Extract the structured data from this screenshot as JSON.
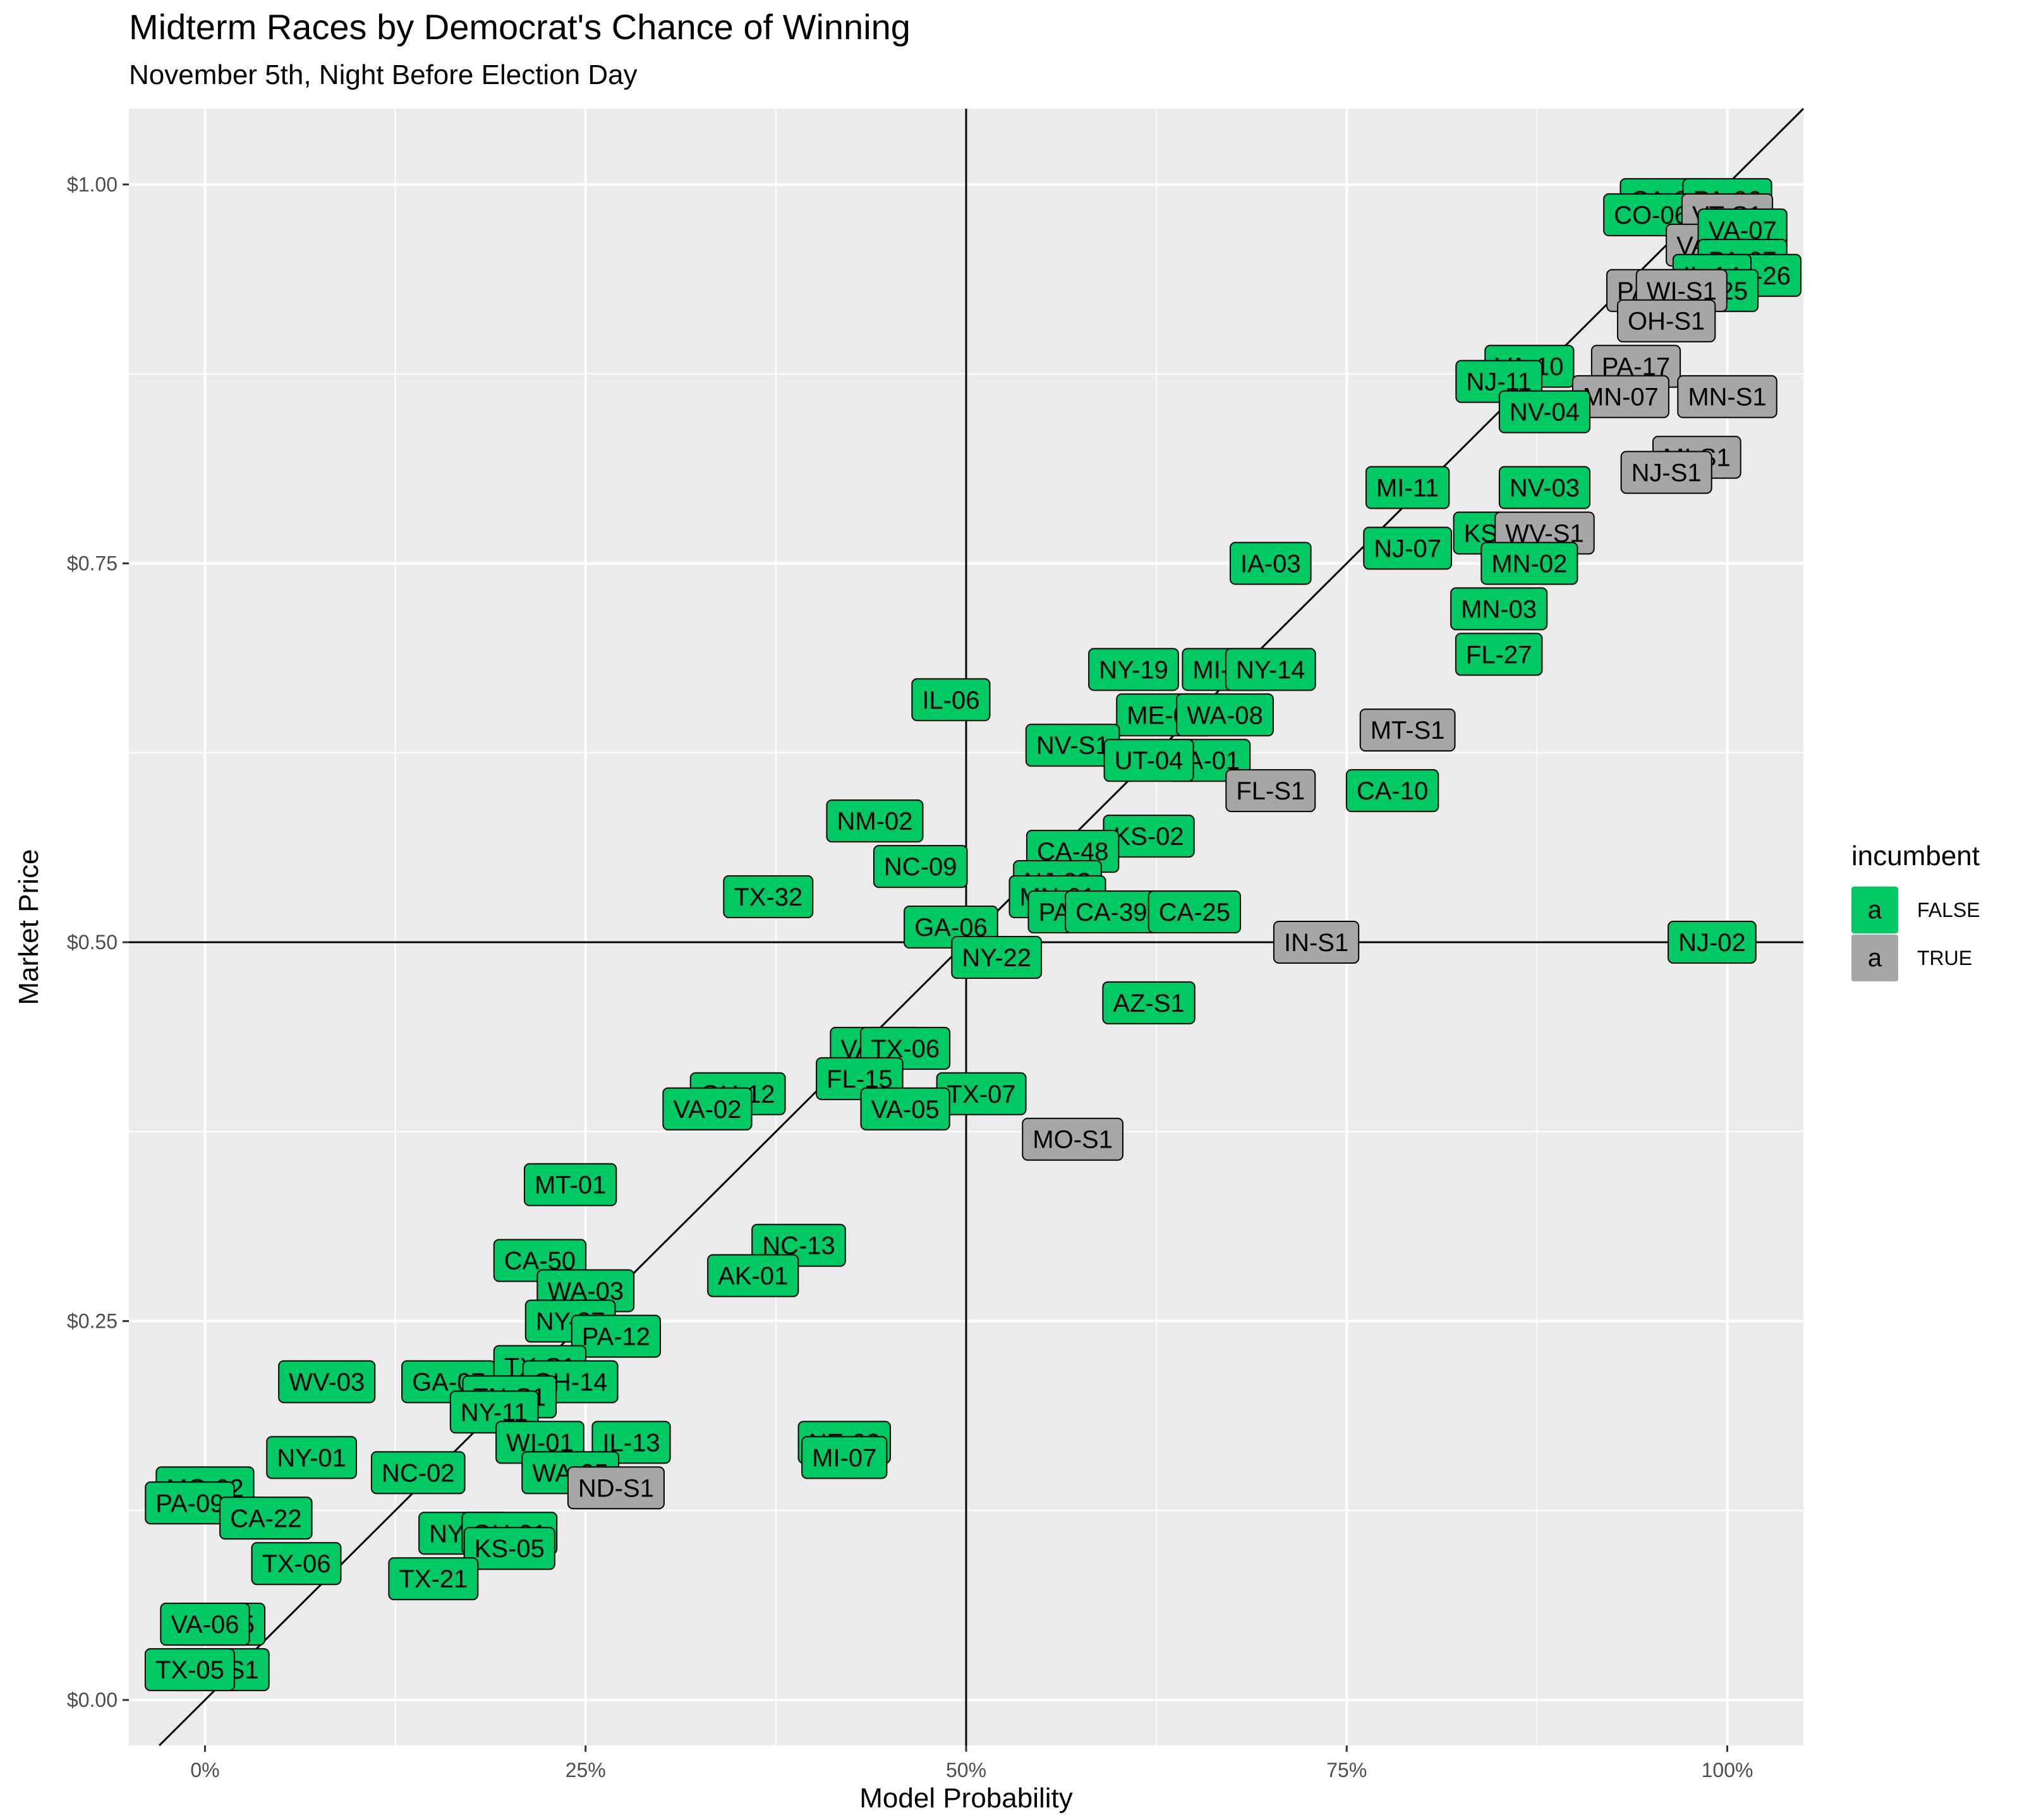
{
  "chart_data": {
    "type": "scatter",
    "title": "Midterm Races by Democrat's Chance of Winning",
    "subtitle": "November 5th, Night Before Election Day",
    "xlabel": "Model Probability",
    "ylabel": "Market Price",
    "xlim": [
      -0.05,
      1.05
    ],
    "ylim": [
      -0.03,
      1.05
    ],
    "x_ticks": [
      {
        "value": 0,
        "label": "0%"
      },
      {
        "value": 0.25,
        "label": "25%"
      },
      {
        "value": 0.5,
        "label": "50%"
      },
      {
        "value": 0.75,
        "label": "75%"
      },
      {
        "value": 1,
        "label": "100%"
      }
    ],
    "y_ticks": [
      {
        "value": 0,
        "label": "$0.00"
      },
      {
        "value": 0.25,
        "label": "$0.25"
      },
      {
        "value": 0.5,
        "label": "$0.50"
      },
      {
        "value": 0.75,
        "label": "$0.75"
      },
      {
        "value": 1,
        "label": "$1.00"
      }
    ],
    "reference_lines": {
      "diagonal": "y = x",
      "vertical_x": 0.5,
      "horizontal_y": 0.5
    },
    "grid": true,
    "legend": {
      "title": "incumbent",
      "position": "right",
      "items": [
        {
          "label": "FALSE",
          "key_text": "a",
          "color": "#00C862"
        },
        {
          "label": "TRUE",
          "key_text": "a",
          "color": "#A6A6A6"
        }
      ]
    },
    "colors": {
      "FALSE": "#00C862",
      "TRUE": "#A6A6A6",
      "panel": "#EBEBEB",
      "grid": "#FFFFFF"
    },
    "points": [
      {
        "label": "CA-39",
        "x": 0.96,
        "y": 0.99,
        "incumbent": false
      },
      {
        "label": "PA-06",
        "x": 1.0,
        "y": 0.99,
        "incumbent": false
      },
      {
        "label": "CO-06",
        "x": 0.95,
        "y": 0.98,
        "incumbent": false
      },
      {
        "label": "VT-S1",
        "x": 1.0,
        "y": 0.98,
        "incumbent": true
      },
      {
        "label": "VA-S1",
        "x": 0.99,
        "y": 0.96,
        "incumbent": true
      },
      {
        "label": "VA-07",
        "x": 1.01,
        "y": 0.97,
        "incumbent": false
      },
      {
        "label": "PA-07",
        "x": 1.01,
        "y": 0.95,
        "incumbent": false
      },
      {
        "label": "FL-26",
        "x": 1.02,
        "y": 0.94,
        "incumbent": false
      },
      {
        "label": "IL-14",
        "x": 0.99,
        "y": 0.94,
        "incumbent": false
      },
      {
        "label": "CA-25",
        "x": 0.99,
        "y": 0.93,
        "incumbent": false
      },
      {
        "label": "PA-05",
        "x": 0.95,
        "y": 0.93,
        "incumbent": true
      },
      {
        "label": "WI-S1",
        "x": 0.97,
        "y": 0.93,
        "incumbent": true
      },
      {
        "label": "OH-S1",
        "x": 0.96,
        "y": 0.91,
        "incumbent": true
      },
      {
        "label": "VA-10",
        "x": 0.87,
        "y": 0.88,
        "incumbent": false
      },
      {
        "label": "PA-17",
        "x": 0.94,
        "y": 0.88,
        "incumbent": true
      },
      {
        "label": "NJ-11",
        "x": 0.85,
        "y": 0.87,
        "incumbent": false
      },
      {
        "label": "MN-07",
        "x": 0.93,
        "y": 0.86,
        "incumbent": true
      },
      {
        "label": "MN-S1",
        "x": 1.0,
        "y": 0.86,
        "incumbent": true
      },
      {
        "label": "NV-04",
        "x": 0.88,
        "y": 0.85,
        "incumbent": false
      },
      {
        "label": "MI-S1",
        "x": 0.98,
        "y": 0.82,
        "incumbent": true
      },
      {
        "label": "NJ-S1",
        "x": 0.96,
        "y": 0.81,
        "incumbent": true
      },
      {
        "label": "MI-11",
        "x": 0.79,
        "y": 0.8,
        "incumbent": false
      },
      {
        "label": "NV-03",
        "x": 0.88,
        "y": 0.8,
        "incumbent": false
      },
      {
        "label": "KS-03",
        "x": 0.85,
        "y": 0.77,
        "incumbent": false
      },
      {
        "label": "WV-S1",
        "x": 0.88,
        "y": 0.77,
        "incumbent": true
      },
      {
        "label": "NJ-07",
        "x": 0.79,
        "y": 0.76,
        "incumbent": false
      },
      {
        "label": "IA-03",
        "x": 0.7,
        "y": 0.75,
        "incumbent": false
      },
      {
        "label": "MN-02",
        "x": 0.87,
        "y": 0.75,
        "incumbent": false
      },
      {
        "label": "MN-03",
        "x": 0.85,
        "y": 0.72,
        "incumbent": false
      },
      {
        "label": "FL-27",
        "x": 0.85,
        "y": 0.69,
        "incumbent": false
      },
      {
        "label": "NY-19",
        "x": 0.61,
        "y": 0.68,
        "incumbent": false
      },
      {
        "label": "MI-08",
        "x": 0.67,
        "y": 0.68,
        "incumbent": false
      },
      {
        "label": "NY-14",
        "x": 0.7,
        "y": 0.68,
        "incumbent": false
      },
      {
        "label": "IL-06",
        "x": 0.49,
        "y": 0.66,
        "incumbent": false
      },
      {
        "label": "ME-02",
        "x": 0.63,
        "y": 0.65,
        "incumbent": false
      },
      {
        "label": "WA-08",
        "x": 0.67,
        "y": 0.65,
        "incumbent": false
      },
      {
        "label": "MT-S1",
        "x": 0.79,
        "y": 0.64,
        "incumbent": true
      },
      {
        "label": "NV-S1",
        "x": 0.57,
        "y": 0.63,
        "incumbent": false
      },
      {
        "label": "IA-01",
        "x": 0.66,
        "y": 0.62,
        "incumbent": false
      },
      {
        "label": "UT-04",
        "x": 0.62,
        "y": 0.62,
        "incumbent": false
      },
      {
        "label": "FL-S1",
        "x": 0.7,
        "y": 0.6,
        "incumbent": true
      },
      {
        "label": "CA-10",
        "x": 0.78,
        "y": 0.6,
        "incumbent": false
      },
      {
        "label": "NM-02",
        "x": 0.44,
        "y": 0.58,
        "incumbent": false
      },
      {
        "label": "KS-02",
        "x": 0.62,
        "y": 0.57,
        "incumbent": false
      },
      {
        "label": "CA-48",
        "x": 0.57,
        "y": 0.56,
        "incumbent": false
      },
      {
        "label": "NC-09",
        "x": 0.47,
        "y": 0.55,
        "incumbent": false
      },
      {
        "label": "NJ-03",
        "x": 0.56,
        "y": 0.54,
        "incumbent": false
      },
      {
        "label": "TX-32",
        "x": 0.37,
        "y": 0.53,
        "incumbent": false
      },
      {
        "label": "MN-01",
        "x": 0.56,
        "y": 0.53,
        "incumbent": false
      },
      {
        "label": "PA-01",
        "x": 0.57,
        "y": 0.52,
        "incumbent": false
      },
      {
        "label": "CA-39b",
        "x": 0.6,
        "y": 0.52,
        "incumbent": false
      },
      {
        "label": "CA-25",
        "x": 0.65,
        "y": 0.52,
        "incumbent": false
      },
      {
        "label": "GA-06",
        "x": 0.49,
        "y": 0.51,
        "incumbent": false
      },
      {
        "label": "IN-S1",
        "x": 0.73,
        "y": 0.5,
        "incumbent": true
      },
      {
        "label": "NJ-02",
        "x": 0.99,
        "y": 0.5,
        "incumbent": false
      },
      {
        "label": "NY-22",
        "x": 0.52,
        "y": 0.49,
        "incumbent": false
      },
      {
        "label": "AZ-S1",
        "x": 0.62,
        "y": 0.46,
        "incumbent": false
      },
      {
        "label": "VA-07",
        "x": 0.44,
        "y": 0.43,
        "incumbent": false
      },
      {
        "label": "TX-06",
        "x": 0.46,
        "y": 0.43,
        "incumbent": false
      },
      {
        "label": "FL-15",
        "x": 0.43,
        "y": 0.41,
        "incumbent": false
      },
      {
        "label": "OH-12",
        "x": 0.35,
        "y": 0.4,
        "incumbent": false
      },
      {
        "label": "TX-07",
        "x": 0.51,
        "y": 0.4,
        "incumbent": false
      },
      {
        "label": "VA-02",
        "x": 0.33,
        "y": 0.39,
        "incumbent": false
      },
      {
        "label": "VA-05",
        "x": 0.46,
        "y": 0.39,
        "incumbent": false
      },
      {
        "label": "MO-S1",
        "x": 0.57,
        "y": 0.37,
        "incumbent": true
      },
      {
        "label": "MT-01",
        "x": 0.24,
        "y": 0.34,
        "incumbent": false
      },
      {
        "label": "NC-13",
        "x": 0.39,
        "y": 0.3,
        "incumbent": false
      },
      {
        "label": "CA-50",
        "x": 0.22,
        "y": 0.29,
        "incumbent": false
      },
      {
        "label": "AK-01",
        "x": 0.36,
        "y": 0.28,
        "incumbent": false
      },
      {
        "label": "WA-03",
        "x": 0.25,
        "y": 0.27,
        "incumbent": false
      },
      {
        "label": "NY-27",
        "x": 0.24,
        "y": 0.25,
        "incumbent": false
      },
      {
        "label": "PA-12",
        "x": 0.27,
        "y": 0.24,
        "incumbent": false
      },
      {
        "label": "WV-03",
        "x": 0.08,
        "y": 0.21,
        "incumbent": false
      },
      {
        "label": "GA-07",
        "x": 0.16,
        "y": 0.21,
        "incumbent": false
      },
      {
        "label": "TX-S1",
        "x": 0.22,
        "y": 0.22,
        "incumbent": false
      },
      {
        "label": "OH-14",
        "x": 0.24,
        "y": 0.21,
        "incumbent": false
      },
      {
        "label": "TN-S1",
        "x": 0.2,
        "y": 0.2,
        "incumbent": false
      },
      {
        "label": "NY-11",
        "x": 0.19,
        "y": 0.19,
        "incumbent": false
      },
      {
        "label": "IL-13",
        "x": 0.28,
        "y": 0.17,
        "incumbent": false
      },
      {
        "label": "WI-01",
        "x": 0.22,
        "y": 0.17,
        "incumbent": false
      },
      {
        "label": "NE-02",
        "x": 0.42,
        "y": 0.17,
        "incumbent": false
      },
      {
        "label": "MI-07",
        "x": 0.42,
        "y": 0.16,
        "incumbent": false
      },
      {
        "label": "NY-01",
        "x": 0.07,
        "y": 0.16,
        "incumbent": false
      },
      {
        "label": "NC-02",
        "x": 0.14,
        "y": 0.15,
        "incumbent": false
      },
      {
        "label": "WA-05",
        "x": 0.24,
        "y": 0.15,
        "incumbent": false
      },
      {
        "label": "ND-S1",
        "x": 0.27,
        "y": 0.14,
        "incumbent": true
      },
      {
        "label": "MO-02",
        "x": 0.0,
        "y": 0.14,
        "incumbent": false
      },
      {
        "label": "PA-09",
        "x": -0.01,
        "y": 0.13,
        "incumbent": false
      },
      {
        "label": "CA-22",
        "x": 0.04,
        "y": 0.12,
        "incumbent": false
      },
      {
        "label": "NY-02",
        "x": 0.17,
        "y": 0.11,
        "incumbent": false
      },
      {
        "label": "OH-01",
        "x": 0.2,
        "y": 0.11,
        "incumbent": false
      },
      {
        "label": "KS-05",
        "x": 0.2,
        "y": 0.1,
        "incumbent": false
      },
      {
        "label": "TX-06",
        "x": 0.06,
        "y": 0.09,
        "incumbent": false
      },
      {
        "label": "TX-21",
        "x": 0.15,
        "y": 0.08,
        "incumbent": false
      },
      {
        "label": "TX-25",
        "x": 0.01,
        "y": 0.05,
        "incumbent": false
      },
      {
        "label": "VA-06",
        "x": 0.0,
        "y": 0.05,
        "incumbent": false
      },
      {
        "label": "MS-S1",
        "x": 0.01,
        "y": 0.02,
        "incumbent": false
      },
      {
        "label": "TX-05",
        "x": -0.01,
        "y": 0.02,
        "incumbent": false
      }
    ]
  }
}
